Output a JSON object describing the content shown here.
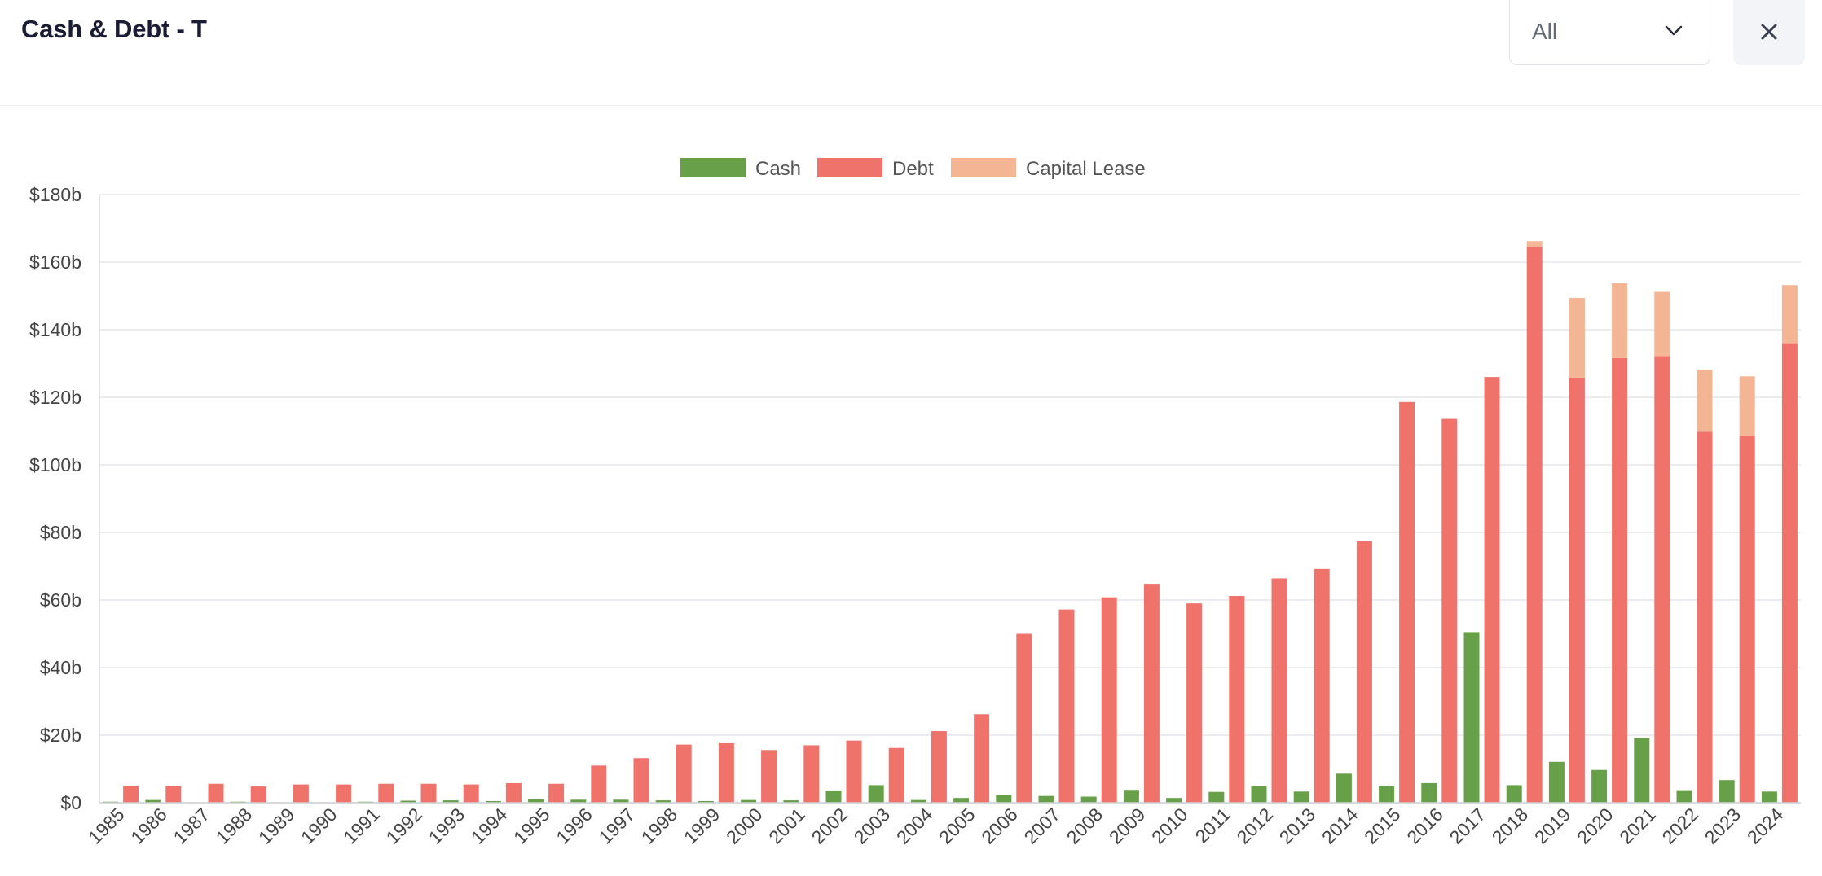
{
  "header": {
    "title": "Cash & Debt - T",
    "filter": {
      "selected": "All"
    },
    "close_icon": "close-icon",
    "chevron_icon": "chevron-down-icon"
  },
  "chart_data": {
    "type": "bar",
    "stacking": "Debt and Capital Lease stacked; Cash grouped beside",
    "legend_position": "top-center",
    "grid": true,
    "ylim": [
      0,
      180
    ],
    "y_ticks": [
      0,
      20,
      40,
      60,
      80,
      100,
      120,
      140,
      160,
      180
    ],
    "y_tick_labels": [
      "$0",
      "$20b",
      "$40b",
      "$60b",
      "$80b",
      "$100b",
      "$120b",
      "$140b",
      "$160b",
      "$180b"
    ],
    "categories": [
      "1985",
      "1986",
      "1987",
      "1988",
      "1989",
      "1990",
      "1991",
      "1992",
      "1993",
      "1994",
      "1995",
      "1996",
      "1997",
      "1998",
      "1999",
      "2000",
      "2001",
      "2002",
      "2003",
      "2004",
      "2005",
      "2006",
      "2007",
      "2008",
      "2009",
      "2010",
      "2011",
      "2012",
      "2013",
      "2014",
      "2015",
      "2016",
      "2017",
      "2018",
      "2019",
      "2020",
      "2021",
      "2022",
      "2023",
      "2024"
    ],
    "series": [
      {
        "name": "Cash",
        "color": "#67a048",
        "values": [
          0.3,
          0.8,
          0.1,
          0.3,
          0.1,
          0.1,
          0.3,
          0.6,
          0.7,
          0.5,
          1.0,
          0.9,
          0.9,
          0.7,
          0.5,
          0.8,
          0.7,
          3.6,
          5.2,
          0.8,
          1.4,
          2.4,
          2.0,
          1.8,
          3.8,
          1.4,
          3.2,
          4.9,
          3.3,
          8.6,
          5.0,
          5.8,
          50.5,
          5.2,
          12.1,
          9.7,
          19.2,
          3.7,
          6.7,
          3.3
        ]
      },
      {
        "name": "Debt",
        "color": "#ef736b",
        "values": [
          5.0,
          5.0,
          5.6,
          4.8,
          5.4,
          5.4,
          5.6,
          5.6,
          5.4,
          5.8,
          5.6,
          11.0,
          13.2,
          17.2,
          17.6,
          15.6,
          17.0,
          18.4,
          16.2,
          21.2,
          26.2,
          50.0,
          57.2,
          60.8,
          64.8,
          59.0,
          61.2,
          66.4,
          69.2,
          77.4,
          118.6,
          113.6,
          126.0,
          164.4,
          125.8,
          131.6,
          132.2,
          109.8,
          108.6,
          136.0
        ]
      },
      {
        "name": "Capital Lease",
        "color": "#f3b594",
        "values": [
          0,
          0,
          0,
          0,
          0,
          0,
          0,
          0,
          0,
          0,
          0,
          0,
          0,
          0,
          0,
          0,
          0,
          0,
          0,
          0,
          0,
          0,
          0,
          0,
          0,
          0,
          0,
          0,
          0,
          0,
          0,
          0,
          0,
          1.8,
          23.6,
          22.2,
          19.0,
          18.4,
          17.6,
          17.2
        ]
      }
    ]
  }
}
